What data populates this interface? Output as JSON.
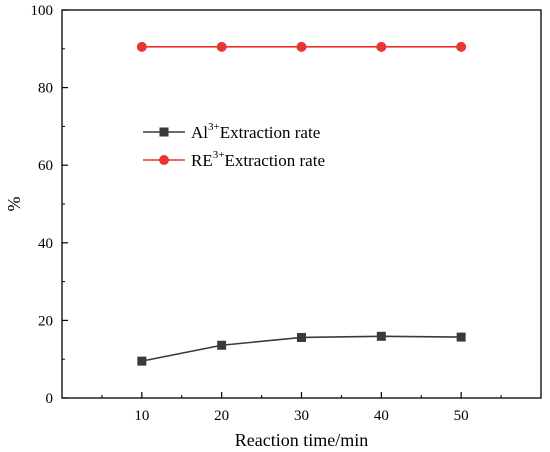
{
  "chart_data": {
    "type": "line",
    "x": [
      10,
      20,
      30,
      40,
      50
    ],
    "xlabel": "Reaction time/min",
    "ylabel": "%",
    "xlim": [
      0,
      60
    ],
    "ylim": [
      0,
      100
    ],
    "x_ticks": [
      10,
      20,
      30,
      40,
      50
    ],
    "y_ticks": [
      0,
      20,
      40,
      60,
      80,
      100
    ],
    "grid": false,
    "legend_position": "center-left",
    "series": [
      {
        "name_base": "Al",
        "name_sup": "3+",
        "name_rest": "Extraction rate",
        "values": [
          9.5,
          13.6,
          15.6,
          15.9,
          15.7
        ],
        "color": "#3a3a3a",
        "marker": "square"
      },
      {
        "name_base": "RE",
        "name_sup": "3+",
        "name_rest": "Extraction rate",
        "values": [
          90.5,
          90.5,
          90.5,
          90.5,
          90.5
        ],
        "color": "#e8372c",
        "marker": "circle"
      }
    ]
  }
}
